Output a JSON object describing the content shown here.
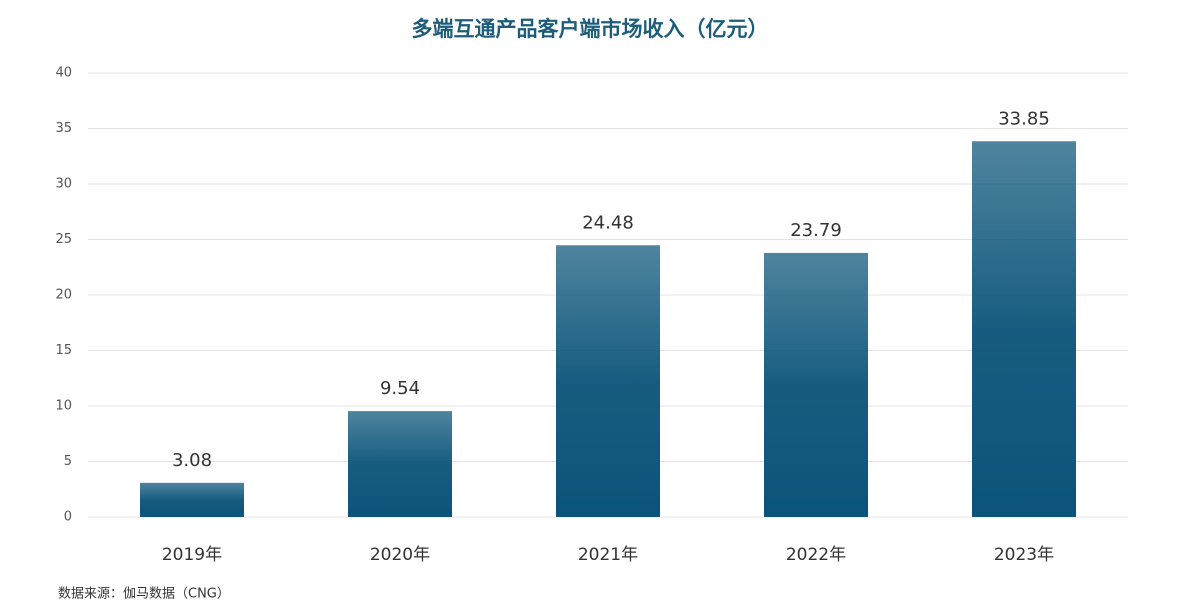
{
  "chart_data": {
    "type": "bar",
    "title": "多端互通产品客户端市场收入（亿元）",
    "categories": [
      "2019年",
      "2020年",
      "2021年",
      "2022年",
      "2023年"
    ],
    "values": [
      3.08,
      9.54,
      24.48,
      23.79,
      33.85
    ],
    "color": "#0b5479",
    "ylim": [
      0,
      40
    ],
    "yticks": [
      0,
      5,
      10,
      15,
      20,
      25,
      30,
      35,
      40
    ],
    "grid": true,
    "source": "数据来源：伽马数据（CNG）"
  }
}
